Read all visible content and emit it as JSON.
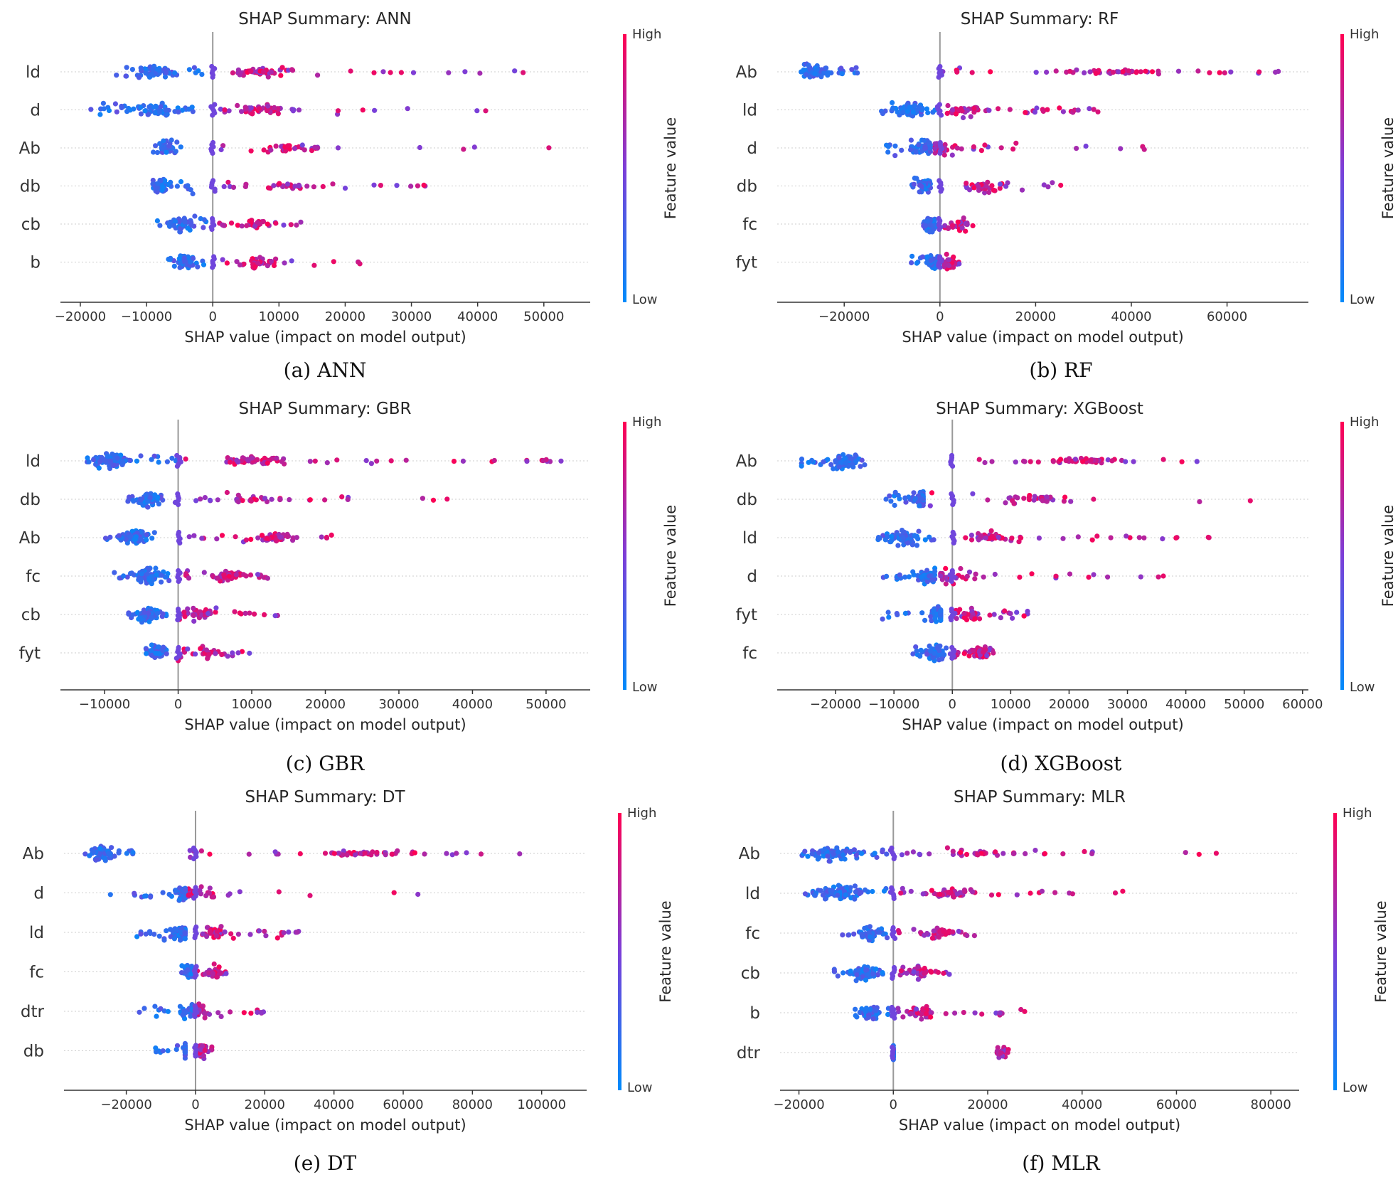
{
  "figure": {
    "colorbar": {
      "high_label": "High",
      "low_label": "Low",
      "title": "Feature value",
      "color_low": "#008bfb",
      "color_high": "#ff0052",
      "color_mid": "#7c3ed8"
    },
    "zero_line_color": "#999999",
    "row_guide_color": "#cccccc"
  },
  "chart_data": [
    {
      "type": "scatter",
      "subtype": "shap-beeswarm",
      "title": "SHAP Summary: ANN",
      "caption": "(a) ANN",
      "xlabel": "SHAP value (impact on model output)",
      "xlim": [
        -23000,
        57000
      ],
      "xticks": [
        -20000,
        -10000,
        0,
        10000,
        20000,
        30000,
        40000,
        50000
      ],
      "xtick_labels": [
        "−20000",
        "−10000",
        "0",
        "10000",
        "20000",
        "30000",
        "40000",
        "50000"
      ],
      "features": [
        {
          "name": "ld",
          "low_range": [
            -15000,
            -1000
          ],
          "high_range": [
            2000,
            47000
          ],
          "core": [
            -9000,
            8000
          ],
          "count": 120
        },
        {
          "name": "d",
          "low_range": [
            -19000,
            -1000
          ],
          "high_range": [
            1000,
            44000
          ],
          "core": [
            -9000,
            7000
          ],
          "count": 115
        },
        {
          "name": "Ab",
          "low_range": [
            -9000,
            -4000
          ],
          "high_range": [
            1000,
            53000
          ],
          "core": [
            -7000,
            12000
          ],
          "count": 80
        },
        {
          "name": "db",
          "low_range": [
            -10000,
            -3000
          ],
          "high_range": [
            1000,
            36000
          ],
          "core": [
            -8000,
            12000
          ],
          "count": 80
        },
        {
          "name": "cb",
          "low_range": [
            -9000,
            -1000
          ],
          "high_range": [
            1000,
            16000
          ],
          "core": [
            -5000,
            6000
          ],
          "count": 90
        },
        {
          "name": "b",
          "low_range": [
            -7000,
            -1000
          ],
          "high_range": [
            1000,
            27000
          ],
          "core": [
            -4000,
            7000
          ],
          "count": 90
        }
      ]
    },
    {
      "type": "scatter",
      "subtype": "shap-beeswarm",
      "title": "SHAP Summary: RF",
      "caption": "(b) RF",
      "xlabel": "SHAP value (impact on model output)",
      "xlim": [
        -34000,
        77000
      ],
      "xticks": [
        -20000,
        0,
        20000,
        40000,
        60000
      ],
      "xtick_labels": [
        "−20000",
        "0",
        "20000",
        "40000",
        "60000"
      ],
      "features": [
        {
          "name": "Ab",
          "low_range": [
            -29000,
            -17000
          ],
          "high_range": [
            0,
            74000
          ],
          "core": [
            -26000,
            36000
          ],
          "count": 130
        },
        {
          "name": "ld",
          "low_range": [
            -13000,
            -1000
          ],
          "high_range": [
            1000,
            41000
          ],
          "core": [
            -6000,
            6000
          ],
          "count": 120
        },
        {
          "name": "d",
          "low_range": [
            -13000,
            -2000
          ],
          "high_range": [
            -1000,
            45000
          ],
          "core": [
            -4000,
            0
          ],
          "count": 90
        },
        {
          "name": "db",
          "low_range": [
            -6000,
            -2000
          ],
          "high_range": [
            5000,
            27000
          ],
          "core": [
            -3000,
            9000
          ],
          "count": 90
        },
        {
          "name": "fc",
          "low_range": [
            -4000,
            0
          ],
          "high_range": [
            1000,
            7000
          ],
          "core": [
            -2000,
            4000
          ],
          "count": 90
        },
        {
          "name": "fyt",
          "low_range": [
            -6000,
            0
          ],
          "high_range": [
            0,
            5000
          ],
          "core": [
            -1500,
            2000
          ],
          "count": 100
        }
      ]
    },
    {
      "type": "scatter",
      "subtype": "shap-beeswarm",
      "title": "SHAP Summary: GBR",
      "caption": "(c) GBR",
      "xlabel": "SHAP value (impact on model output)",
      "xlim": [
        -16000,
        56000
      ],
      "xticks": [
        -10000,
        0,
        10000,
        20000,
        30000,
        40000,
        50000
      ],
      "xtick_labels": [
        "−10000",
        "0",
        "10000",
        "20000",
        "30000",
        "40000",
        "50000"
      ],
      "features": [
        {
          "name": "ld",
          "low_range": [
            -13000,
            0
          ],
          "high_range": [
            1000,
            53000
          ],
          "core": [
            -9000,
            10000
          ],
          "count": 150
        },
        {
          "name": "db",
          "low_range": [
            -7000,
            -2000
          ],
          "high_range": [
            2000,
            43000
          ],
          "core": [
            -4000,
            10000
          ],
          "count": 100
        },
        {
          "name": "Ab",
          "low_range": [
            -10000,
            -3000
          ],
          "high_range": [
            1000,
            21000
          ],
          "core": [
            -6000,
            13000
          ],
          "count": 130
        },
        {
          "name": "fc",
          "low_range": [
            -9000,
            -1000
          ],
          "high_range": [
            1000,
            14000
          ],
          "core": [
            -4000,
            7000
          ],
          "count": 130
        },
        {
          "name": "cb",
          "low_range": [
            -7000,
            -1000
          ],
          "high_range": [
            0,
            17000
          ],
          "core": [
            -4000,
            3000
          ],
          "count": 110
        },
        {
          "name": "fyt",
          "low_range": [
            -4500,
            -1500
          ],
          "high_range": [
            0,
            10000
          ],
          "core": [
            -3000,
            4000
          ],
          "count": 100
        }
      ]
    },
    {
      "type": "scatter",
      "subtype": "shap-beeswarm",
      "title": "SHAP Summary: XGBoost",
      "caption": "(d) XGBoost",
      "xlabel": "SHAP value (impact on model output)",
      "xlim": [
        -30000,
        61000
      ],
      "xticks": [
        -20000,
        -10000,
        0,
        10000,
        20000,
        30000,
        40000,
        50000,
        60000
      ],
      "xtick_labels": [
        "−20000",
        "−10000",
        "0",
        "10000",
        "20000",
        "30000",
        "40000",
        "50000",
        "60000"
      ],
      "features": [
        {
          "name": "Ab",
          "low_range": [
            -26000,
            -15000
          ],
          "high_range": [
            2000,
            44000
          ],
          "core": [
            -18000,
            23000
          ],
          "count": 130
        },
        {
          "name": "db",
          "low_range": [
            -12000,
            -5000
          ],
          "high_range": [
            -4000,
            57000
          ],
          "core": [
            -5000,
            15000
          ],
          "count": 100
        },
        {
          "name": "ld",
          "low_range": [
            -13000,
            -2000
          ],
          "high_range": [
            1000,
            49000
          ],
          "core": [
            -8000,
            6000
          ],
          "count": 120
        },
        {
          "name": "d",
          "low_range": [
            -12000,
            -3000
          ],
          "high_range": [
            -2000,
            37000
          ],
          "core": [
            -4000,
            0
          ],
          "count": 90
        },
        {
          "name": "fyt",
          "low_range": [
            -12000,
            -2000
          ],
          "high_range": [
            0,
            13000
          ],
          "core": [
            -2000,
            3000
          ],
          "count": 100
        },
        {
          "name": "fc",
          "low_range": [
            -7000,
            -1000
          ],
          "high_range": [
            0,
            9000
          ],
          "core": [
            -3000,
            5000
          ],
          "count": 130
        }
      ]
    },
    {
      "type": "scatter",
      "subtype": "shap-beeswarm",
      "title": "SHAP Summary: DT",
      "caption": "(e) DT",
      "xlabel": "SHAP value (impact on model output)",
      "xlim": [
        -38000,
        113000
      ],
      "xticks": [
        -20000,
        0,
        20000,
        40000,
        60000,
        80000,
        100000
      ],
      "xtick_labels": [
        "−20000",
        "0",
        "20000",
        "40000",
        "60000",
        "80000",
        "100000"
      ],
      "features": [
        {
          "name": "Ab",
          "low_range": [
            -32000,
            -18000
          ],
          "high_range": [
            -3000,
            105000
          ],
          "core": [
            -27000,
            48000
          ],
          "count": 140
        },
        {
          "name": "d",
          "low_range": [
            -25000,
            -3000
          ],
          "high_range": [
            -2000,
            68000
          ],
          "core": [
            -4000,
            0
          ],
          "count": 80
        },
        {
          "name": "ld",
          "low_range": [
            -18000,
            -3000
          ],
          "high_range": [
            2000,
            32000
          ],
          "core": [
            -4000,
            5000
          ],
          "count": 110
        },
        {
          "name": "fc",
          "low_range": [
            -4000,
            -1000
          ],
          "high_range": [
            0,
            11000
          ],
          "core": [
            -2000,
            6000
          ],
          "count": 80
        },
        {
          "name": "dtr",
          "low_range": [
            -17000,
            -1000
          ],
          "high_range": [
            0,
            20000
          ],
          "core": [
            -1000,
            1000
          ],
          "count": 80
        },
        {
          "name": "db",
          "low_range": [
            -12000,
            -3000
          ],
          "high_range": [
            0,
            5000
          ],
          "core": [
            0,
            2000
          ],
          "count": 70
        }
      ]
    },
    {
      "type": "scatter",
      "subtype": "shap-beeswarm",
      "title": "SHAP Summary: MLR",
      "caption": "(f) MLR",
      "xlabel": "SHAP value (impact on model output)",
      "xlim": [
        -24000,
        86000
      ],
      "xticks": [
        -20000,
        0,
        20000,
        40000,
        60000,
        80000
      ],
      "xtick_labels": [
        "−20000",
        "0",
        "20000",
        "40000",
        "60000",
        "80000"
      ],
      "features": [
        {
          "name": "Ab",
          "low_range": [
            -20000,
            -1000
          ],
          "high_range": [
            1000,
            81000
          ],
          "core": [
            -13000,
            18000
          ],
          "count": 120
        },
        {
          "name": "ld",
          "low_range": [
            -19000,
            -1000
          ],
          "high_range": [
            1000,
            49000
          ],
          "core": [
            -12000,
            12000
          ],
          "count": 140
        },
        {
          "name": "fc",
          "low_range": [
            -11000,
            -1000
          ],
          "high_range": [
            1000,
            18000
          ],
          "core": [
            -5000,
            10000
          ],
          "count": 90
        },
        {
          "name": "cb",
          "low_range": [
            -13000,
            -1000
          ],
          "high_range": [
            1000,
            15000
          ],
          "core": [
            -6000,
            6000
          ],
          "count": 110
        },
        {
          "name": "b",
          "low_range": [
            -9000,
            -1000
          ],
          "high_range": [
            1000,
            31000
          ],
          "core": [
            -5000,
            6000
          ],
          "count": 100
        },
        {
          "name": "dtr",
          "low_range": [
            0,
            0
          ],
          "high_range": [
            22000,
            25000
          ],
          "core": [
            0,
            23000
          ],
          "count": 60
        }
      ]
    }
  ]
}
